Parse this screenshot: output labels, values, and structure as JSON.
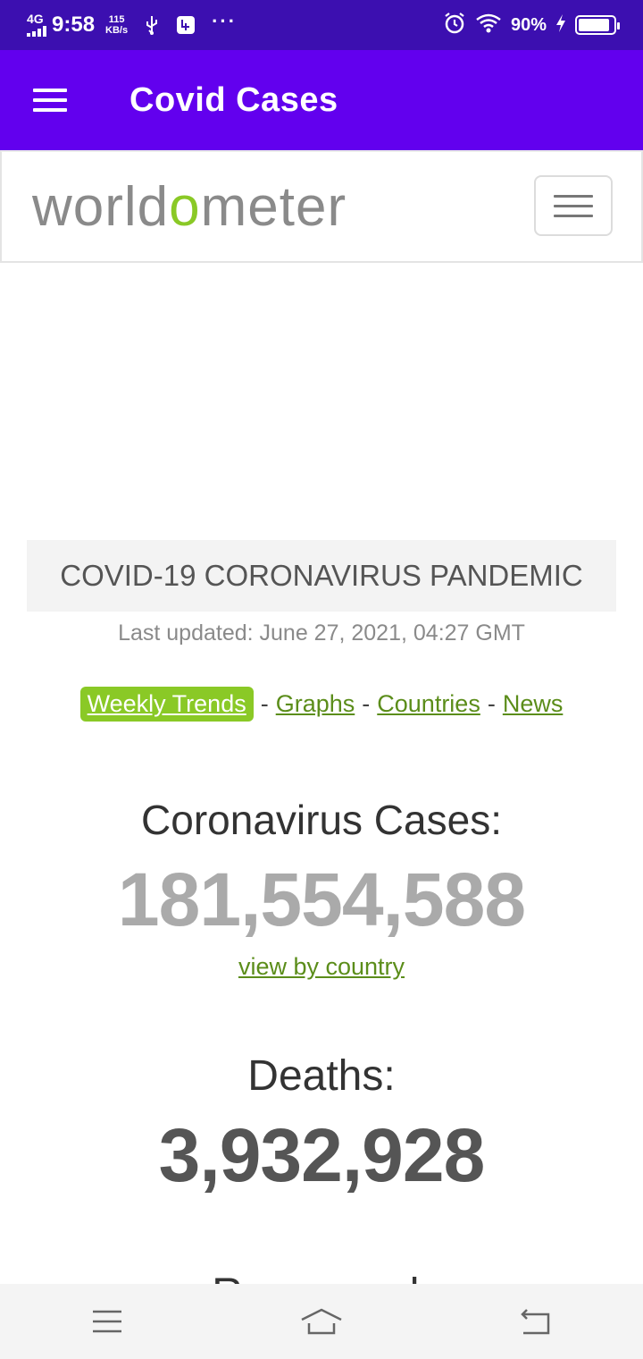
{
  "status_bar": {
    "network": "4G",
    "time": "9:58",
    "speed_value": "115",
    "speed_unit": "KB/s",
    "more": "···",
    "battery_percent": "90%",
    "battery_level": 0.9
  },
  "app_bar": {
    "title": "Covid Cases"
  },
  "site": {
    "logo_before": "world",
    "logo_o": "o",
    "logo_after": "meter"
  },
  "banner": {
    "title": "COVID-19 CORONAVIRUS PANDEMIC",
    "last_updated": "Last updated: June 27, 2021, 04:27 GMT"
  },
  "links": {
    "weekly_trends": "Weekly Trends",
    "graphs": "Graphs",
    "countries": "Countries",
    "news": "News",
    "separator": "-"
  },
  "stats": {
    "cases_label": "Coronavirus Cases:",
    "cases_value": "181,554,588",
    "view_by_country": "view by country",
    "deaths_label": "Deaths:",
    "deaths_value": "3,932,928",
    "recovered_label": "Recovered:"
  },
  "colors": {
    "status_bar": "#3c0fb0",
    "app_bar": "#6200ee",
    "accent_green": "#8ac926",
    "link_green": "#5b8d1a"
  }
}
